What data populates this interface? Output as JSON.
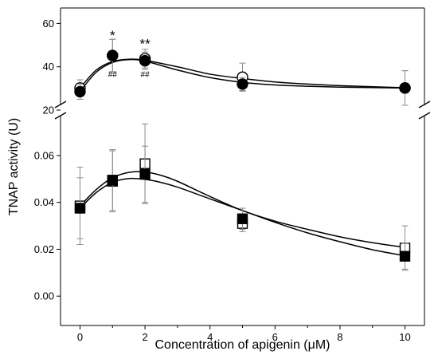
{
  "chart_data": {
    "type": "scatter",
    "title": "",
    "xlabel": "Concentration of apigenin (μM)",
    "ylabel": "TNAP activity (U)",
    "x_ticks": [
      "0",
      "2",
      "4",
      "6",
      "8",
      "10"
    ],
    "x_range": [
      -0.6,
      10.6
    ],
    "grid": false,
    "axis_break": true,
    "panels": [
      {
        "id": "upper",
        "ylim": [
          20,
          62
        ],
        "y_ticks": [
          "20",
          "40",
          "60"
        ],
        "series": [
          {
            "marker": "open-circle",
            "color": "#000000",
            "x": [
              0,
              1,
              2,
              5,
              10
            ],
            "y": [
              30.2,
              45.2,
              43.8,
              35.2,
              30.2
            ],
            "err": [
              3.8,
              7.5,
              4.3,
              6.5,
              8.0
            ],
            "fit": [
              [
                0,
                30.2
              ],
              [
                0.5,
                38.5
              ],
              [
                1,
                42.4
              ],
              [
                1.5,
                43.5
              ],
              [
                2,
                43.0
              ],
              [
                3,
                40.0
              ],
              [
                4,
                36.6
              ],
              [
                5,
                34.6
              ],
              [
                6,
                33.0
              ],
              [
                7,
                32.0
              ],
              [
                8,
                31.3
              ],
              [
                10,
                30.3
              ]
            ]
          },
          {
            "marker": "filled-circle",
            "color": "#000000",
            "x": [
              0,
              1,
              2,
              5,
              10
            ],
            "y": [
              28.5,
              45.2,
              42.8,
              32.0,
              30.2
            ],
            "err": [
              3.5,
              7.5,
              4.0,
              3.0,
              8.0
            ],
            "fit": [
              [
                0,
                28.6
              ],
              [
                0.5,
                37.5
              ],
              [
                1,
                42.0
              ],
              [
                1.5,
                43.3
              ],
              [
                2,
                42.6
              ],
              [
                3,
                38.5
              ],
              [
                4,
                35.0
              ],
              [
                5,
                32.8
              ],
              [
                6,
                31.6
              ],
              [
                7,
                31.0
              ],
              [
                8,
                30.6
              ],
              [
                10,
                30.2
              ]
            ]
          }
        ],
        "annotations": [
          {
            "x": 1,
            "y": 52.5,
            "text": "*",
            "style": "star"
          },
          {
            "x": 1,
            "y": 35.3,
            "text": "##",
            "style": "hash"
          },
          {
            "x": 2,
            "y": 48.5,
            "text": "**",
            "style": "star"
          },
          {
            "x": 2,
            "y": 35.3,
            "text": "##",
            "style": "hash"
          }
        ]
      },
      {
        "id": "lower",
        "ylim": [
          -0.003,
          0.077
        ],
        "y_ticks": [
          "0.00",
          "0.02",
          "0.04",
          "0.06"
        ],
        "series": [
          {
            "marker": "open-square",
            "color": "#000000",
            "x": [
              0,
              1,
              2,
              5,
              10
            ],
            "y": [
              0.0385,
              0.049,
              0.0565,
              0.031,
              0.0205
            ],
            "err": [
              0.0165,
              0.013,
              0.017,
              0.0035,
              0.0095
            ],
            "fit": [
              [
                0,
                0.0385
              ],
              [
                0.5,
                0.0455
              ],
              [
                1,
                0.0505
              ],
              [
                1.5,
                0.0528
              ],
              [
                2,
                0.053
              ],
              [
                2.5,
                0.0515
              ],
              [
                3,
                0.049
              ],
              [
                4,
                0.0425
              ],
              [
                5,
                0.0365
              ],
              [
                6,
                0.032
              ],
              [
                7,
                0.0285
              ],
              [
                8,
                0.0253
              ],
              [
                9,
                0.0228
              ],
              [
                10,
                0.0208
              ]
            ]
          },
          {
            "marker": "filled-square",
            "color": "#000000",
            "x": [
              0,
              1,
              2,
              5,
              10
            ],
            "y": [
              0.0375,
              0.0495,
              0.052,
              0.033,
              0.017
            ],
            "err": [
              0.013,
              0.013,
              0.012,
              0.0045,
              0.0055
            ],
            "fit": [
              [
                0,
                0.0375
              ],
              [
                0.5,
                0.0442
              ],
              [
                1,
                0.0485
              ],
              [
                1.5,
                0.0502
              ],
              [
                2,
                0.0498
              ],
              [
                2.5,
                0.0485
              ],
              [
                3,
                0.0465
              ],
              [
                4,
                0.0415
              ],
              [
                5,
                0.0365
              ],
              [
                6,
                0.0315
              ],
              [
                7,
                0.027
              ],
              [
                8,
                0.0232
              ],
              [
                9,
                0.0198
              ],
              [
                10,
                0.0172
              ]
            ]
          }
        ],
        "annotations": []
      }
    ]
  }
}
